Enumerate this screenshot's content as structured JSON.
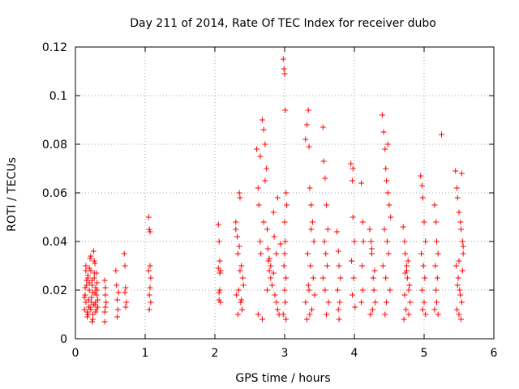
{
  "chart_data": {
    "type": "scatter",
    "title": "Day 211 of 2014, Rate Of TEC Index for receiver dubo",
    "xlabel": "GPS time / hours",
    "ylabel": "ROTI / TECUs",
    "xlim": [
      0,
      6
    ],
    "ylim": [
      0,
      0.12
    ],
    "x_ticks": [
      0,
      1,
      2,
      3,
      4,
      5,
      6
    ],
    "x_tick_labels": [
      "0",
      "1",
      "2",
      "3",
      "4",
      "5",
      "6"
    ],
    "y_ticks": [
      0,
      0.02,
      0.04,
      0.06,
      0.08,
      0.1,
      0.12
    ],
    "y_tick_labels": [
      "0",
      "0.02",
      "0.04",
      "0.06",
      "0.08",
      "0.1",
      "0.12"
    ],
    "grid": true,
    "marker": "+",
    "color": "#ff0000",
    "series": [
      {
        "name": "ROTI",
        "x": [
          0.13,
          0.14,
          0.15,
          0.16,
          0.17,
          0.18,
          0.19,
          0.2,
          0.21,
          0.22,
          0.23,
          0.24,
          0.25,
          0.26,
          0.27,
          0.28,
          0.29,
          0.3,
          0.31,
          0.32,
          0.15,
          0.18,
          0.22,
          0.25,
          0.28,
          0.3,
          0.14,
          0.2,
          0.26,
          0.29,
          0.17,
          0.23,
          0.27,
          0.19,
          0.24,
          0.31,
          0.13,
          0.21,
          0.28,
          0.16,
          0.25,
          0.3,
          0.18,
          0.22,
          0.27,
          0.15,
          0.2,
          0.24,
          0.29,
          0.32,
          0.42,
          0.43,
          0.42,
          0.44,
          0.43,
          0.42,
          0.43,
          0.58,
          0.59,
          0.6,
          0.61,
          0.62,
          0.6,
          0.7,
          0.71,
          0.72,
          0.73,
          0.72,
          0.71,
          1.05,
          1.06,
          1.07,
          1.08,
          1.07,
          1.06,
          1.08,
          1.06,
          1.05,
          1.07,
          2.05,
          2.06,
          2.07,
          2.08,
          2.07,
          2.06,
          2.08,
          2.07,
          2.06,
          2.05,
          2.3,
          2.32,
          2.33,
          2.35,
          2.36,
          2.38,
          2.4,
          2.34,
          2.31,
          2.37,
          2.39,
          2.33,
          2.36,
          2.41,
          2.35,
          2.3,
          2.38,
          2.6,
          2.62,
          2.63,
          2.65,
          2.66,
          2.68,
          2.7,
          2.72,
          2.74,
          2.75,
          2.77,
          2.78,
          2.8,
          2.82,
          2.84,
          2.86,
          2.88,
          2.9,
          2.92,
          2.94,
          2.65,
          2.7,
          2.75,
          2.8,
          2.85,
          2.9,
          2.72,
          2.78,
          2.84,
          2.76,
          2.68,
          2.62,
          2.88,
          2.98,
          2.99,
          3.0,
          3.01,
          3.02,
          3.03,
          3.0,
          3.01,
          2.99,
          3.02,
          3.0,
          3.01,
          2.98,
          3.02,
          3.0,
          3.3,
          3.32,
          3.34,
          3.35,
          3.36,
          3.38,
          3.4,
          3.42,
          3.33,
          3.37,
          3.41,
          3.35,
          3.3,
          3.39,
          3.36,
          3.32,
          3.43,
          3.34,
          3.38,
          3.55,
          3.56,
          3.58,
          3.6,
          3.62,
          3.57,
          3.59,
          3.61,
          3.55,
          3.58,
          3.63,
          3.6,
          3.75,
          3.77,
          3.78,
          3.8,
          3.76,
          3.79,
          3.77,
          3.78,
          3.95,
          3.97,
          3.98,
          4.0,
          3.96,
          3.99,
          3.97,
          4.01,
          3.98,
          4.1,
          4.12,
          4.13,
          4.11,
          4.12,
          4.1,
          4.22,
          4.24,
          4.25,
          4.27,
          4.28,
          4.3,
          4.26,
          4.23,
          4.29,
          4.25,
          4.4,
          4.42,
          4.44,
          4.45,
          4.46,
          4.48,
          4.5,
          4.52,
          4.43,
          4.47,
          4.49,
          4.41,
          4.45,
          4.51,
          4.46,
          4.44,
          4.48,
          4.7,
          4.72,
          4.73,
          4.75,
          4.76,
          4.78,
          4.8,
          4.74,
          4.71,
          4.77,
          4.79,
          4.72,
          4.75,
          4.78,
          4.73,
          4.95,
          4.97,
          4.98,
          5.0,
          5.02,
          4.96,
          4.99,
          5.01,
          4.97,
          5.0,
          4.98,
          5.02,
          5.15,
          5.17,
          5.18,
          5.2,
          5.16,
          5.19,
          5.17,
          5.18,
          5.15,
          5.2,
          5.25,
          5.45,
          5.47,
          5.48,
          5.5,
          5.52,
          5.53,
          5.55,
          5.56,
          5.46,
          5.49,
          5.51,
          5.54,
          5.47,
          5.5,
          5.53,
          5.55,
          5.48,
          5.52,
          5.56,
          5.5,
          5.54
        ],
        "y": [
          0.012,
          0.018,
          0.015,
          0.022,
          0.011,
          0.025,
          0.016,
          0.02,
          0.013,
          0.028,
          0.017,
          0.024,
          0.01,
          0.014,
          0.027,
          0.019,
          0.021,
          0.012,
          0.023,
          0.016,
          0.03,
          0.026,
          0.034,
          0.008,
          0.031,
          0.018,
          0.021,
          0.029,
          0.036,
          0.011,
          0.009,
          0.015,
          0.032,
          0.013,
          0.022,
          0.02,
          0.017,
          0.033,
          0.014,
          0.024,
          0.019,
          0.027,
          0.01,
          0.012,
          0.025,
          0.028,
          0.023,
          0.007,
          0.015,
          0.013,
          0.024,
          0.018,
          0.011,
          0.015,
          0.021,
          0.007,
          0.013,
          0.028,
          0.022,
          0.016,
          0.012,
          0.019,
          0.009,
          0.035,
          0.03,
          0.021,
          0.015,
          0.013,
          0.019,
          0.05,
          0.045,
          0.03,
          0.025,
          0.021,
          0.018,
          0.015,
          0.012,
          0.028,
          0.044,
          0.047,
          0.04,
          0.032,
          0.028,
          0.02,
          0.016,
          0.015,
          0.027,
          0.019,
          0.029,
          0.048,
          0.042,
          0.035,
          0.06,
          0.058,
          0.03,
          0.025,
          0.02,
          0.018,
          0.015,
          0.012,
          0.01,
          0.028,
          0.022,
          0.038,
          0.045,
          0.016,
          0.078,
          0.062,
          0.055,
          0.04,
          0.035,
          0.09,
          0.086,
          0.08,
          0.07,
          0.045,
          0.032,
          0.028,
          0.025,
          0.022,
          0.052,
          0.018,
          0.015,
          0.012,
          0.01,
          0.039,
          0.075,
          0.048,
          0.02,
          0.03,
          0.042,
          0.058,
          0.065,
          0.033,
          0.027,
          0.037,
          0.008,
          0.01,
          0.035,
          0.115,
          0.111,
          0.109,
          0.094,
          0.06,
          0.055,
          0.048,
          0.04,
          0.03,
          0.025,
          0.02,
          0.015,
          0.01,
          0.008,
          0.035,
          0.082,
          0.088,
          0.094,
          0.079,
          0.062,
          0.055,
          0.048,
          0.04,
          0.035,
          0.03,
          0.025,
          0.02,
          0.015,
          0.012,
          0.01,
          0.008,
          0.018,
          0.022,
          0.045,
          0.087,
          0.073,
          0.066,
          0.055,
          0.045,
          0.04,
          0.035,
          0.03,
          0.025,
          0.02,
          0.015,
          0.01,
          0.044,
          0.036,
          0.03,
          0.025,
          0.02,
          0.015,
          0.012,
          0.008,
          0.072,
          0.065,
          0.05,
          0.04,
          0.032,
          0.025,
          0.018,
          0.013,
          0.07,
          0.064,
          0.048,
          0.04,
          0.03,
          0.02,
          0.015,
          0.045,
          0.04,
          0.035,
          0.025,
          0.02,
          0.015,
          0.012,
          0.01,
          0.028,
          0.037,
          0.092,
          0.085,
          0.078,
          0.07,
          0.065,
          0.06,
          0.055,
          0.05,
          0.045,
          0.04,
          0.035,
          0.03,
          0.025,
          0.02,
          0.015,
          0.01,
          0.08,
          0.046,
          0.04,
          0.035,
          0.03,
          0.025,
          0.02,
          0.015,
          0.012,
          0.008,
          0.032,
          0.022,
          0.018,
          0.028,
          0.01,
          0.027,
          0.067,
          0.063,
          0.058,
          0.048,
          0.04,
          0.035,
          0.03,
          0.025,
          0.02,
          0.015,
          0.012,
          0.01,
          0.055,
          0.048,
          0.04,
          0.035,
          0.03,
          0.025,
          0.02,
          0.015,
          0.012,
          0.01,
          0.084,
          0.069,
          0.062,
          0.058,
          0.052,
          0.048,
          0.045,
          0.04,
          0.035,
          0.03,
          0.025,
          0.02,
          0.015,
          0.012,
          0.01,
          0.008,
          0.028,
          0.022,
          0.018,
          0.038,
          0.032,
          0.068
        ]
      }
    ]
  }
}
